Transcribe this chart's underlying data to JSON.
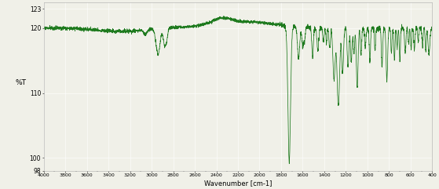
{
  "xlabel": "Wavenumber [cm-1]",
  "ylabel": "%T",
  "xlim": [
    4000,
    400
  ],
  "ylim": [
    98,
    124
  ],
  "yticks": [
    98,
    100,
    110,
    120,
    123
  ],
  "ytick_labels": [
    "98",
    "100",
    "110",
    "120",
    "123"
  ],
  "xticks": [
    4000,
    3800,
    3600,
    3400,
    3200,
    3000,
    2800,
    2600,
    2400,
    2200,
    2000,
    1800,
    1600,
    1400,
    1200,
    1000,
    800,
    600,
    400
  ],
  "line_color": "#1e7a1e",
  "bg_color": "#f0f0e8",
  "seed": 10
}
